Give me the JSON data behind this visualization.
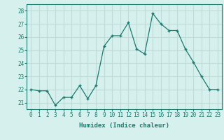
{
  "x": [
    0,
    1,
    2,
    3,
    4,
    5,
    6,
    7,
    8,
    9,
    10,
    11,
    12,
    13,
    14,
    15,
    16,
    17,
    18,
    19,
    20,
    21,
    22,
    23
  ],
  "y": [
    22.0,
    21.9,
    21.9,
    20.8,
    21.4,
    21.4,
    22.3,
    21.3,
    22.3,
    25.3,
    26.1,
    26.1,
    27.1,
    25.1,
    24.7,
    27.8,
    27.0,
    26.5,
    26.5,
    25.1,
    24.1,
    23.0,
    22.0,
    22.0
  ],
  "line_color": "#1a7a6e",
  "marker": "+",
  "marker_size": 3,
  "bg_color": "#d6f0ee",
  "grid_color": "#c0dbd9",
  "xlabel": "Humidex (Indice chaleur)",
  "ylabel_ticks": [
    21,
    22,
    23,
    24,
    25,
    26,
    27,
    28
  ],
  "xlim": [
    -0.5,
    23.5
  ],
  "ylim": [
    20.5,
    28.5
  ],
  "tick_fontsize": 5.5,
  "xlabel_fontsize": 6.5
}
